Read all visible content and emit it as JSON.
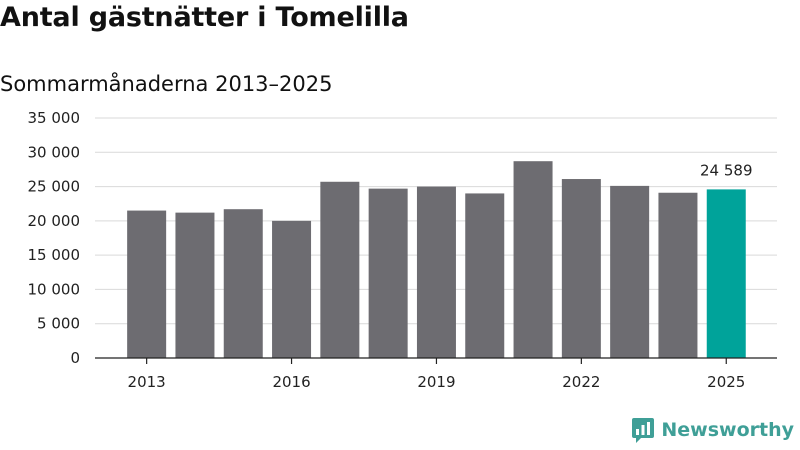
{
  "header": {
    "title": "Antal gästnätter i Tomelilla",
    "subtitle": "Sommarmånaderna 2013–2025"
  },
  "brand": {
    "name": "Newsworthy",
    "icon": "newsworthy-logo-icon",
    "color": "#3f9f97"
  },
  "colors": {
    "bar": "#6d6c71",
    "highlight": "#00a39a",
    "grid": "#d9d9d9",
    "axis": "#222222"
  },
  "chart_data": {
    "type": "bar",
    "title": "Antal gästnätter i Tomelilla",
    "subtitle": "Sommarmånaderna 2013–2025",
    "xlabel": "",
    "ylabel": "",
    "categories": [
      "2013",
      "2014",
      "2015",
      "2016",
      "2017",
      "2018",
      "2019",
      "2020",
      "2021",
      "2022",
      "2023",
      "2024",
      "2025"
    ],
    "values": [
      21500,
      21200,
      21700,
      20000,
      25700,
      24700,
      25000,
      24000,
      28700,
      26100,
      25100,
      24100,
      24589
    ],
    "highlight_category": "2025",
    "x_tick_labels": [
      "2013",
      "2016",
      "2019",
      "2022",
      "2025"
    ],
    "y_tick_labels": [
      "0",
      "5 000",
      "10 000",
      "15 000",
      "20 000",
      "25 000",
      "30 000",
      "35 000"
    ],
    "y_ticks": [
      0,
      5000,
      10000,
      15000,
      20000,
      25000,
      30000,
      35000
    ],
    "ylim": [
      0,
      35000
    ],
    "data_labels": [
      {
        "category": "2025",
        "text": "24 589"
      }
    ],
    "grid": true,
    "legend": "none"
  }
}
